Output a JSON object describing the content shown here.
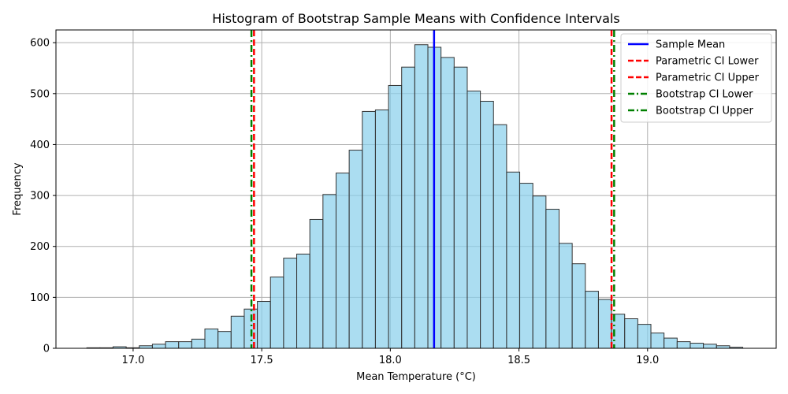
{
  "chart_data": {
    "type": "histogram",
    "title": "Histogram of Bootstrap Sample Means with Confidence Intervals",
    "xlabel": "Mean Temperature (°C)",
    "ylabel": "Frequency",
    "xlim": [
      16.7,
      19.5
    ],
    "ylim": [
      0,
      625
    ],
    "xticks": [
      17.0,
      17.5,
      18.0,
      18.5,
      19.0
    ],
    "xtick_labels": [
      "17.0",
      "17.5",
      "18.0",
      "18.5",
      "19.0"
    ],
    "yticks": [
      0,
      100,
      200,
      300,
      400,
      500,
      600
    ],
    "ytick_labels": [
      "0",
      "100",
      "200",
      "300",
      "400",
      "500",
      "600"
    ],
    "grid": true,
    "legend_position": "top-right",
    "bar_color": "#87CEEB",
    "bar_edge_color": "#333333",
    "bin_start": 16.82,
    "bin_width": 0.051,
    "counts": [
      1,
      1,
      3,
      1,
      5,
      8,
      13,
      13,
      18,
      38,
      33,
      63,
      77,
      92,
      140,
      177,
      185,
      253,
      302,
      344,
      389,
      465,
      468,
      516,
      552,
      596,
      591,
      571,
      552,
      505,
      485,
      439,
      346,
      324,
      299,
      273,
      206,
      166,
      112,
      96,
      67,
      58,
      47,
      30,
      20,
      13,
      10,
      8,
      5,
      2
    ],
    "lines": [
      {
        "name": "Sample Mean",
        "x": 18.17,
        "color": "#0000ff",
        "style": "solid"
      },
      {
        "name": "Parametric CI Lower",
        "x": 17.47,
        "color": "#ff0000",
        "style": "dashed"
      },
      {
        "name": "Parametric CI Upper",
        "x": 18.86,
        "color": "#ff0000",
        "style": "dashed"
      },
      {
        "name": "Bootstrap CI Lower",
        "x": 17.46,
        "color": "#008000",
        "style": "dashdot"
      },
      {
        "name": "Bootstrap CI Upper",
        "x": 18.87,
        "color": "#008000",
        "style": "dashdot"
      }
    ]
  }
}
